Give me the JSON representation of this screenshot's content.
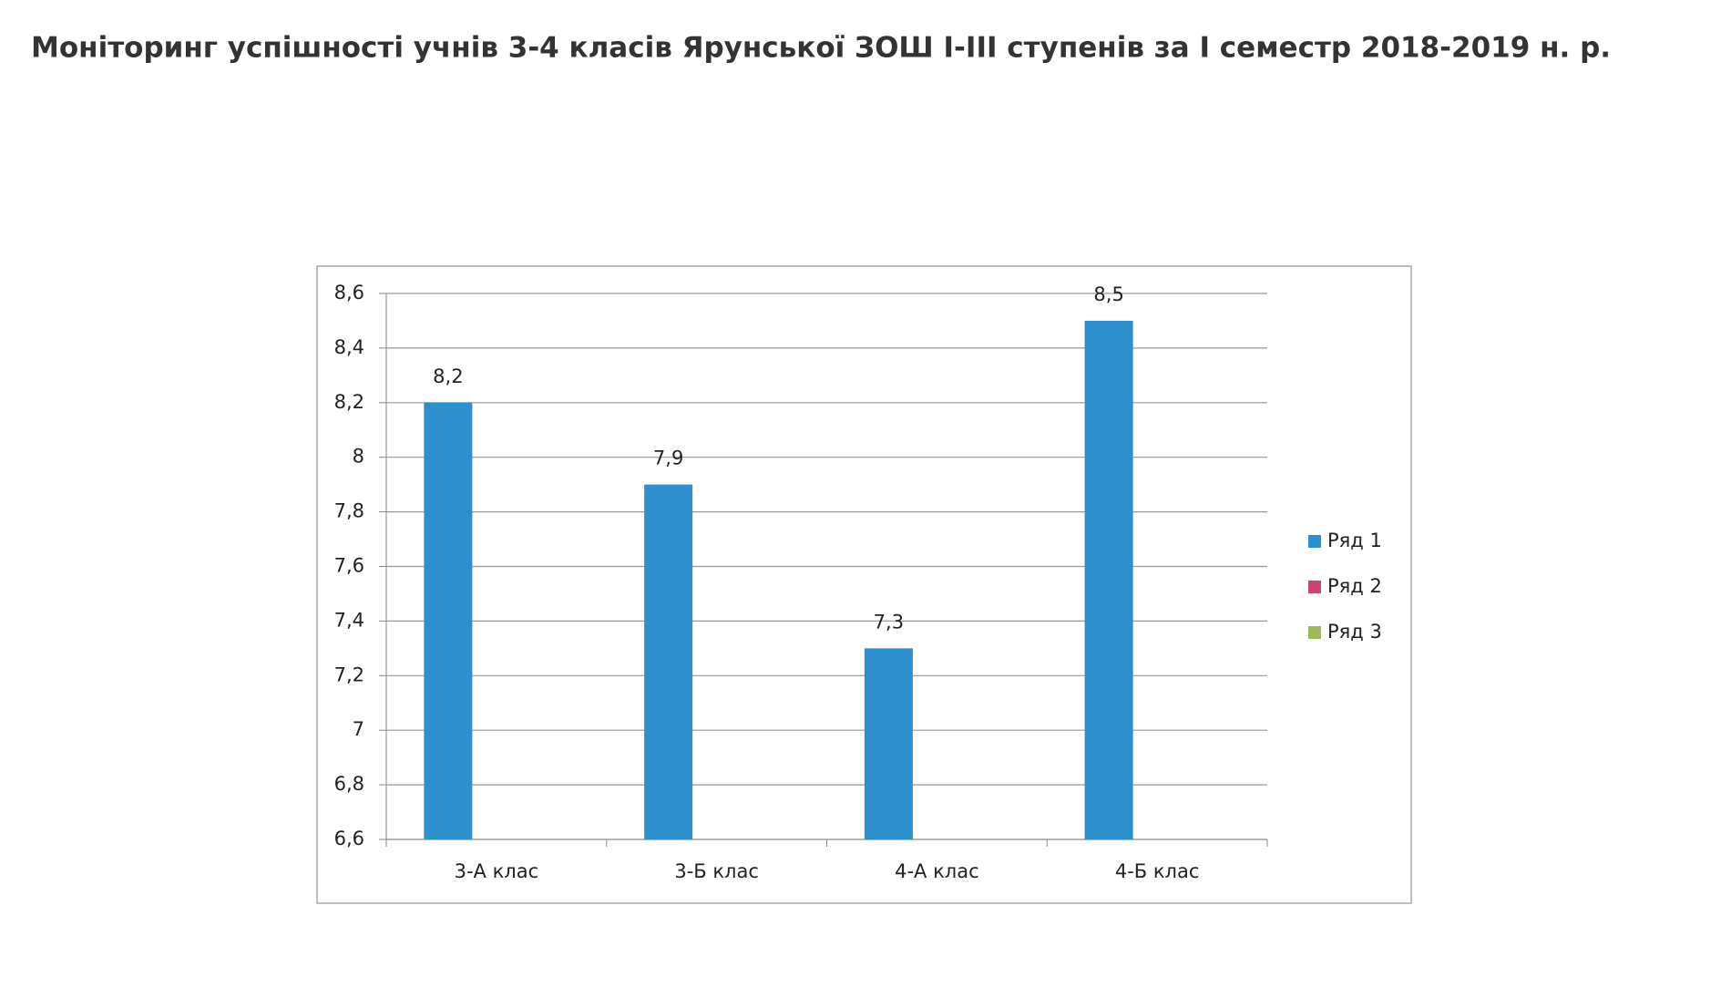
{
  "chart_data": {
    "type": "bar",
    "title": "Моніторинг успішності учнів 3-4 класів Ярунської ЗОШ І-ІІІ ступенів за І семестр 2018-2019 н. р.",
    "categories": [
      "3-А клас",
      "3-Б клас",
      "4-А клас",
      "4-Б клас"
    ],
    "series": [
      {
        "name": "Ряд 1",
        "color": "#2e8fcf",
        "values": [
          8.2,
          7.9,
          7.3,
          8.5
        ],
        "value_labels": [
          "8,2",
          "7,9",
          "7,3",
          "8,5"
        ]
      },
      {
        "name": "Ряд 2",
        "color": "#c9456b",
        "values": [
          null,
          null,
          null,
          null
        ]
      },
      {
        "name": "Ряд 3",
        "color": "#9bbb59",
        "values": [
          null,
          null,
          null,
          null
        ]
      }
    ],
    "ylim": [
      6.6,
      8.6
    ],
    "yticks": [
      {
        "value": 6.6,
        "label": "6,6"
      },
      {
        "value": 6.8,
        "label": "6,8"
      },
      7,
      {
        "value": 7.2,
        "label": "7,2"
      },
      {
        "value": 7.4,
        "label": "7,4"
      },
      {
        "value": 7.6,
        "label": "7,6"
      },
      {
        "value": 7.8,
        "label": "7,8"
      },
      8,
      {
        "value": 8.2,
        "label": "8,2"
      },
      {
        "value": 8.4,
        "label": "8,4"
      },
      {
        "value": 8.6,
        "label": "8,6"
      }
    ],
    "grid": true,
    "legend": "right"
  }
}
